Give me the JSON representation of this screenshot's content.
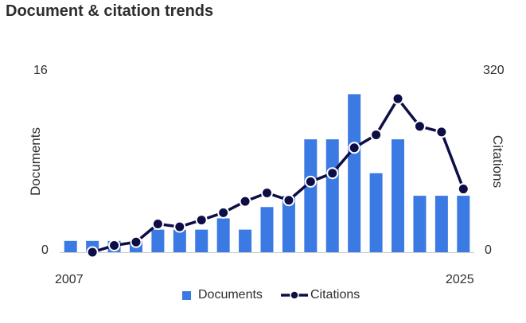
{
  "title": "Document & citation trends",
  "colors": {
    "documents": "#3c7ae3",
    "citations": "#0e0e46",
    "axis": "#cccccc"
  },
  "chart_data": {
    "type": "bar",
    "title": "Document & citation trends",
    "x": [
      2007,
      2008,
      2009,
      2010,
      2011,
      2012,
      2013,
      2014,
      2015,
      2016,
      2017,
      2018,
      2019,
      2020,
      2021,
      2022,
      2023,
      2024,
      2025
    ],
    "x_tick_labels": [
      "2007",
      "2025"
    ],
    "series": [
      {
        "name": "Documents",
        "type": "bar",
        "axis": "left",
        "values": [
          1,
          1,
          1,
          1,
          2,
          2,
          2,
          3,
          2,
          4,
          5,
          10,
          10,
          14,
          7,
          10,
          5,
          5,
          5
        ]
      },
      {
        "name": "Citations",
        "type": "line",
        "axis": "right",
        "values": [
          null,
          0,
          12,
          18,
          50,
          45,
          57,
          70,
          90,
          105,
          92,
          125,
          140,
          185,
          208,
          272,
          223,
          213,
          112
        ]
      }
    ],
    "left_axis": {
      "label": "Documents",
      "min": 0,
      "max": 16,
      "tick_labels": [
        "16",
        "0"
      ]
    },
    "right_axis": {
      "label": "Citations",
      "min": 0,
      "max": 320,
      "tick_labels": [
        "320",
        "0"
      ]
    },
    "grid": false,
    "legend": {
      "position": "bottom",
      "entries": [
        "Documents",
        "Citations"
      ]
    }
  }
}
